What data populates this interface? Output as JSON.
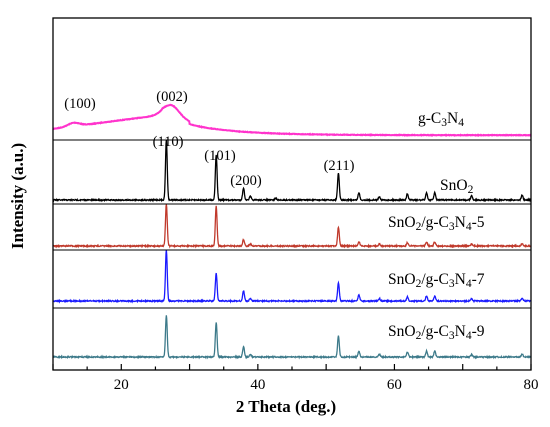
{
  "chart_data": {
    "type": "line",
    "xlabel": "2 Theta (deg.)",
    "ylabel": "Intensity (a.u.)",
    "xlim": [
      10,
      80
    ],
    "xticks": [
      20,
      40,
      60,
      80
    ],
    "xtick_labels": [
      "20",
      "40",
      "60",
      "80"
    ],
    "grid": false,
    "legend": "none",
    "series": [
      {
        "key": "gcn",
        "label_parts": [
          [
            "g-C",
            "normal"
          ],
          [
            "3",
            "sub"
          ],
          [
            "N",
            "normal"
          ],
          [
            "4",
            "sub"
          ]
        ],
        "color": "#ff33cc",
        "kind": "broad",
        "peaks": [
          {
            "x": 13.0,
            "height": 0.16,
            "width": 1.2,
            "label": "(100)"
          },
          {
            "x": 27.4,
            "height": 0.55,
            "width": 1.6,
            "label": "(002)"
          }
        ]
      },
      {
        "key": "sno2",
        "label_parts": [
          [
            "SnO",
            "normal"
          ],
          [
            "2",
            "sub"
          ]
        ],
        "color": "#000000",
        "kind": "sharp",
        "peaks": [
          {
            "x": 26.6,
            "height": 1.0,
            "label": "(110)"
          },
          {
            "x": 33.9,
            "height": 0.76,
            "label": "(101)"
          },
          {
            "x": 37.9,
            "height": 0.2,
            "label": "(200)"
          },
          {
            "x": 38.9,
            "height": 0.06
          },
          {
            "x": 42.6,
            "height": 0.03
          },
          {
            "x": 51.8,
            "height": 0.45,
            "label": "(211)"
          },
          {
            "x": 54.8,
            "height": 0.12
          },
          {
            "x": 57.8,
            "height": 0.06
          },
          {
            "x": 61.9,
            "height": 0.1
          },
          {
            "x": 64.7,
            "height": 0.12
          },
          {
            "x": 65.9,
            "height": 0.12
          },
          {
            "x": 71.3,
            "height": 0.07
          },
          {
            "x": 78.7,
            "height": 0.08
          }
        ]
      },
      {
        "key": "sample5",
        "label_parts": [
          [
            "SnO",
            "normal"
          ],
          [
            "2",
            "sub"
          ],
          [
            "/g-C",
            "normal"
          ],
          [
            "3",
            "sub"
          ],
          [
            "N",
            "normal"
          ],
          [
            "4",
            "sub"
          ],
          [
            "-5",
            "normal"
          ]
        ],
        "color": "#c0392b",
        "kind": "sharp",
        "peaks": [
          {
            "x": 26.6,
            "height": 1.0
          },
          {
            "x": 33.9,
            "height": 0.95
          },
          {
            "x": 37.9,
            "height": 0.15
          },
          {
            "x": 38.9,
            "height": 0.05
          },
          {
            "x": 51.8,
            "height": 0.45
          },
          {
            "x": 54.8,
            "height": 0.1
          },
          {
            "x": 57.8,
            "height": 0.05
          },
          {
            "x": 61.9,
            "height": 0.08
          },
          {
            "x": 64.7,
            "height": 0.1
          },
          {
            "x": 65.9,
            "height": 0.1
          },
          {
            "x": 71.3,
            "height": 0.05
          },
          {
            "x": 78.7,
            "height": 0.06
          }
        ]
      },
      {
        "key": "sample7",
        "label_parts": [
          [
            "SnO",
            "normal"
          ],
          [
            "2",
            "sub"
          ],
          [
            "/g-C",
            "normal"
          ],
          [
            "3",
            "sub"
          ],
          [
            "N",
            "normal"
          ],
          [
            "4",
            "sub"
          ],
          [
            "-7",
            "normal"
          ]
        ],
        "color": "#1a1aff",
        "kind": "sharp",
        "peaks": [
          {
            "x": 26.6,
            "height": 1.0
          },
          {
            "x": 33.9,
            "height": 0.55
          },
          {
            "x": 37.9,
            "height": 0.2
          },
          {
            "x": 38.9,
            "height": 0.05
          },
          {
            "x": 51.8,
            "height": 0.36
          },
          {
            "x": 54.8,
            "height": 0.12
          },
          {
            "x": 57.8,
            "height": 0.05
          },
          {
            "x": 61.9,
            "height": 0.08
          },
          {
            "x": 64.7,
            "height": 0.1
          },
          {
            "x": 65.9,
            "height": 0.1
          },
          {
            "x": 71.3,
            "height": 0.05
          },
          {
            "x": 78.7,
            "height": 0.06
          }
        ]
      },
      {
        "key": "sample9",
        "label_parts": [
          [
            "SnO",
            "normal"
          ],
          [
            "2",
            "sub"
          ],
          [
            "/g-C",
            "normal"
          ],
          [
            "3",
            "sub"
          ],
          [
            "N",
            "normal"
          ],
          [
            "4",
            "sub"
          ],
          [
            "-9",
            "normal"
          ]
        ],
        "color": "#3d7a8a",
        "kind": "sharp",
        "peaks": [
          {
            "x": 26.6,
            "height": 1.0
          },
          {
            "x": 33.9,
            "height": 0.82
          },
          {
            "x": 37.9,
            "height": 0.25
          },
          {
            "x": 38.9,
            "height": 0.06
          },
          {
            "x": 51.8,
            "height": 0.5
          },
          {
            "x": 54.8,
            "height": 0.14
          },
          {
            "x": 57.8,
            "height": 0.06
          },
          {
            "x": 61.9,
            "height": 0.12
          },
          {
            "x": 64.7,
            "height": 0.14
          },
          {
            "x": 65.9,
            "height": 0.14
          },
          {
            "x": 71.3,
            "height": 0.06
          },
          {
            "x": 78.7,
            "height": 0.07
          }
        ]
      }
    ]
  }
}
